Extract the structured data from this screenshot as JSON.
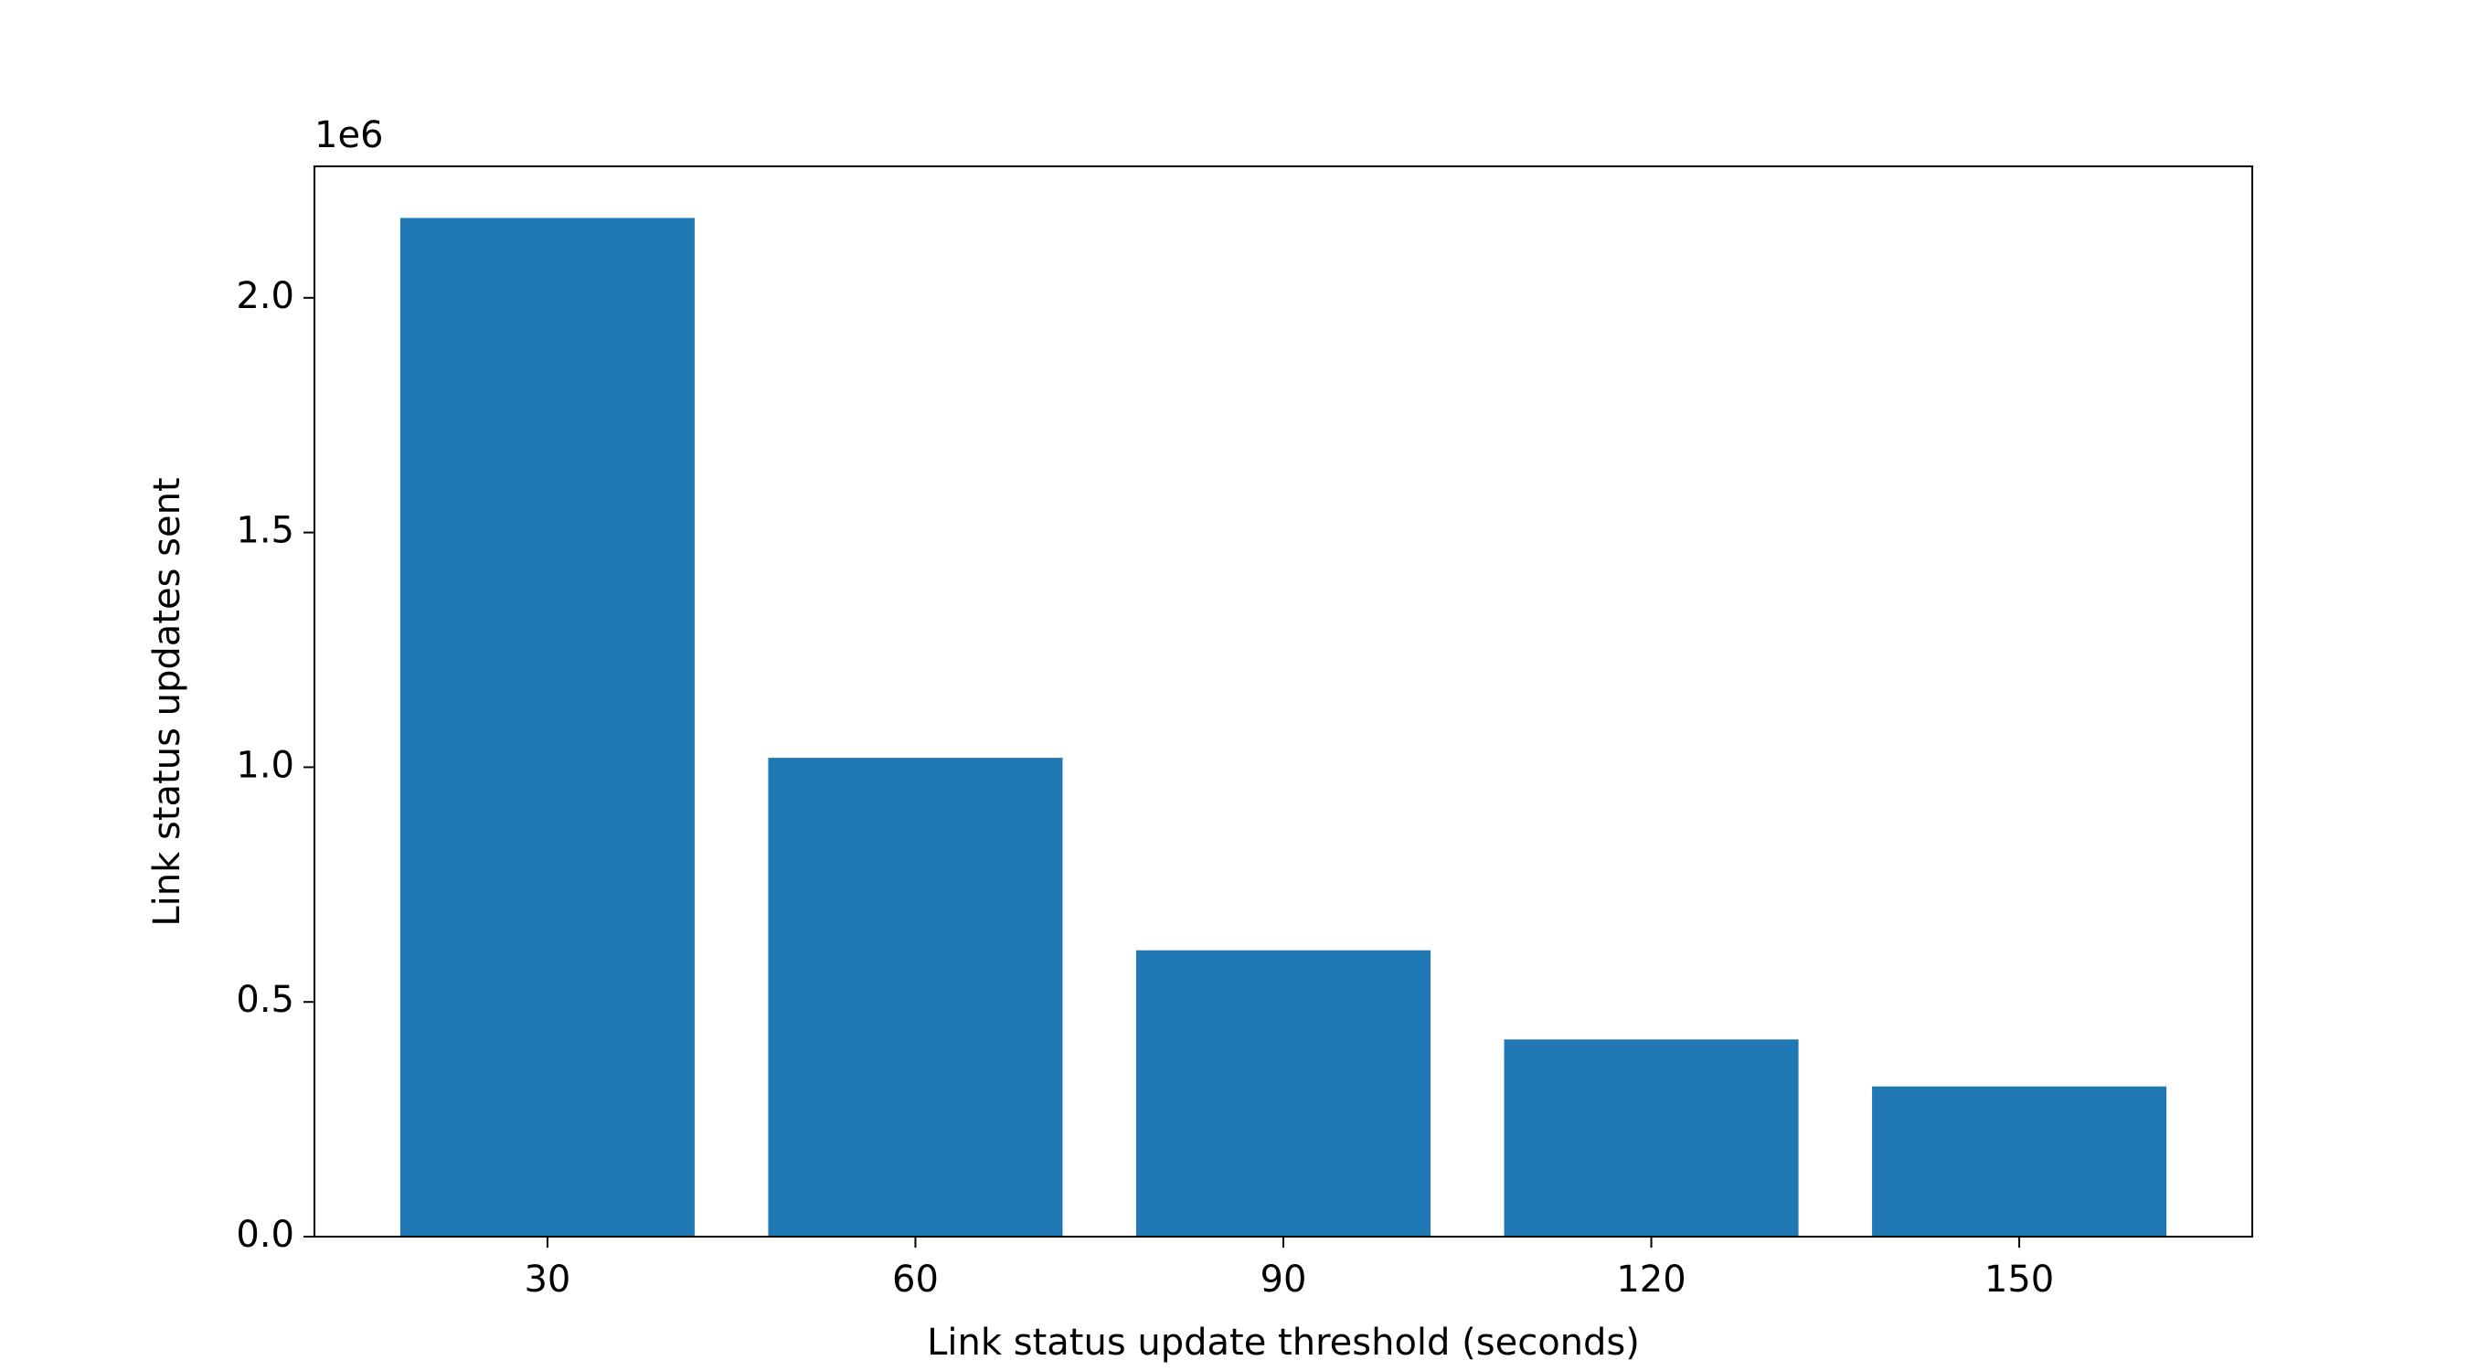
{
  "chart_data": {
    "type": "bar",
    "x_label": "Link status update threshold (seconds)",
    "y_label": "Link status updates sent",
    "y_offset_label": "1e6",
    "x": [
      30,
      60,
      90,
      120,
      150
    ],
    "values": [
      2170000,
      1020000,
      610000,
      420000,
      320000
    ],
    "color": "#1f77b4",
    "xlim": [
      11,
      169
    ],
    "xticks": [
      30,
      60,
      90,
      120,
      150
    ],
    "ylim": [
      0,
      2280000
    ],
    "yticks": [
      {
        "value": 0,
        "label": "0.0"
      },
      {
        "value": 500000,
        "label": "0.5"
      },
      {
        "value": 1000000,
        "label": "1.0"
      },
      {
        "value": 1500000,
        "label": "1.5"
      },
      {
        "value": 2000000,
        "label": "2.0"
      }
    ],
    "grid": false
  }
}
